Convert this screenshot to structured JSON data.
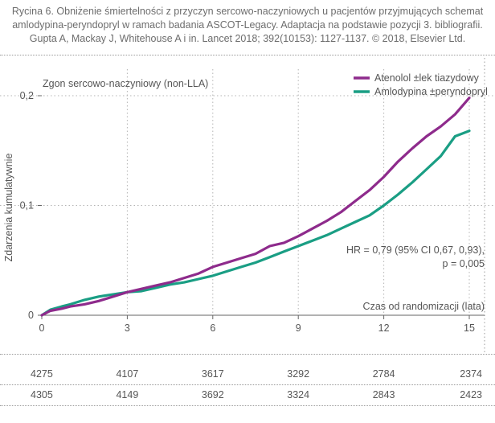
{
  "caption": {
    "line1": "Rycina 6. Obniżenie śmiertelności z przyczyn sercowo-naczyniowych u pacjentów przyjmujących schemat",
    "line2": "amlodypina-peryndopryl w ramach badania ASCOT-Legacy. Adaptacja na podstawie pozycji 3. bibliografii.",
    "line3": "Gupta A, Mackay J, Whitehouse A i in. Lancet 2018; 392(10153): 1127-1137. © 2018, Elsevier Ltd."
  },
  "chart_data": {
    "type": "line",
    "title": "Zgon sercowo-naczyniowy (non-LLA)",
    "xlabel": "Czas od randomizacji (lata)",
    "ylabel": "Zdarzenia kumulatywnie",
    "xlim": [
      0,
      15.5
    ],
    "ylim": [
      0,
      0.21
    ],
    "x_ticks": [
      "0",
      "3",
      "6",
      "9",
      "12",
      "15"
    ],
    "x_tick_values": [
      0,
      3,
      6,
      9,
      12,
      15
    ],
    "y_ticks": [
      "0",
      "0,1",
      "0,2"
    ],
    "y_tick_values": [
      0,
      0.1,
      0.2
    ],
    "legend_position": "top-right",
    "annotation_line1": "HR = 0,79 (95% CI 0,67, 0,93),",
    "annotation_line2": "p = 0,005",
    "series": [
      {
        "name": "Atenolol ±lek tiazydowy",
        "color": "#8e2b8c",
        "x": [
          0,
          0.3,
          0.7,
          1.0,
          1.5,
          2.0,
          2.5,
          3.0,
          3.5,
          4.0,
          4.5,
          5.0,
          5.5,
          6.0,
          6.5,
          7.0,
          7.5,
          8.0,
          8.5,
          9.0,
          9.5,
          10.0,
          10.5,
          11.0,
          11.5,
          12.0,
          12.5,
          13.0,
          13.5,
          14.0,
          14.5,
          15.0
        ],
        "y": [
          0,
          0.004,
          0.006,
          0.008,
          0.01,
          0.013,
          0.017,
          0.021,
          0.024,
          0.027,
          0.03,
          0.034,
          0.038,
          0.044,
          0.048,
          0.052,
          0.056,
          0.063,
          0.066,
          0.072,
          0.079,
          0.086,
          0.094,
          0.104,
          0.114,
          0.126,
          0.14,
          0.152,
          0.163,
          0.172,
          0.183,
          0.198
        ]
      },
      {
        "name": "Amlodypina ±peryndopryl",
        "color": "#1a9e84",
        "x": [
          0,
          0.3,
          0.7,
          1.0,
          1.5,
          2.0,
          2.5,
          3.0,
          3.5,
          4.0,
          4.5,
          5.0,
          5.5,
          6.0,
          6.5,
          7.0,
          7.5,
          8.0,
          8.5,
          9.0,
          9.5,
          10.0,
          10.5,
          11.0,
          11.5,
          12.0,
          12.5,
          13.0,
          13.5,
          14.0,
          14.5,
          15.0
        ],
        "y": [
          0,
          0.005,
          0.008,
          0.01,
          0.014,
          0.017,
          0.019,
          0.021,
          0.022,
          0.025,
          0.028,
          0.03,
          0.033,
          0.036,
          0.04,
          0.044,
          0.048,
          0.053,
          0.058,
          0.063,
          0.068,
          0.073,
          0.079,
          0.085,
          0.091,
          0.1,
          0.11,
          0.121,
          0.133,
          0.145,
          0.163,
          0.168
        ]
      }
    ],
    "at_risk": {
      "x_values": [
        0,
        3,
        6,
        9,
        12,
        15
      ],
      "rows": [
        [
          "4275",
          "4107",
          "3617",
          "3292",
          "2784",
          "2374"
        ],
        [
          "4305",
          "4149",
          "3692",
          "3324",
          "2843",
          "2423"
        ]
      ]
    }
  }
}
